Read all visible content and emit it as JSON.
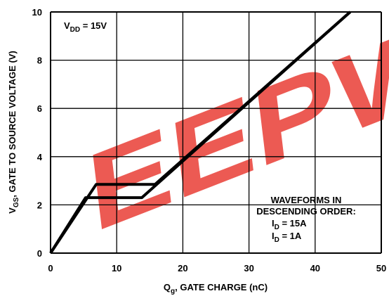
{
  "chart_data": {
    "type": "line",
    "xlabel": {
      "main": "Q",
      "sub": "g",
      "rest": ", GATE CHARGE (nC)"
    },
    "ylabel": {
      "main": "V",
      "sub": "GS",
      "rest": ", GATE TO SOURCE VOLTAGE (V)"
    },
    "xlim": [
      0,
      50
    ],
    "ylim": [
      0,
      10
    ],
    "x_ticks": [
      0,
      10,
      20,
      30,
      40,
      50
    ],
    "y_ticks": [
      0,
      2,
      4,
      6,
      8,
      10
    ],
    "grid": true,
    "annotations": {
      "vdd": {
        "main": "V",
        "sub": "DD",
        "rest": " = 15V"
      },
      "legend_line1": "WAVEFORMS IN",
      "legend_line2": "DESCENDING ORDER:",
      "id_15": {
        "main": "I",
        "sub": "D",
        "rest": " = 15A"
      },
      "id_1": {
        "main": "I",
        "sub": "D",
        "rest": " = 1A"
      }
    },
    "watermark": "EEPW",
    "series": [
      {
        "x": [
          0,
          6.9,
          15.8,
          45.3
        ],
        "y": [
          0,
          2.85,
          2.85,
          10
        ],
        "color": "#000000"
      },
      {
        "x": [
          0,
          5.3,
          13.8,
          45.3
        ],
        "y": [
          0,
          2.3,
          2.3,
          10
        ],
        "color": "#000000"
      }
    ]
  },
  "colors": {
    "watermark": "#e8372e",
    "line": "#000000",
    "grid": "#000000"
  }
}
